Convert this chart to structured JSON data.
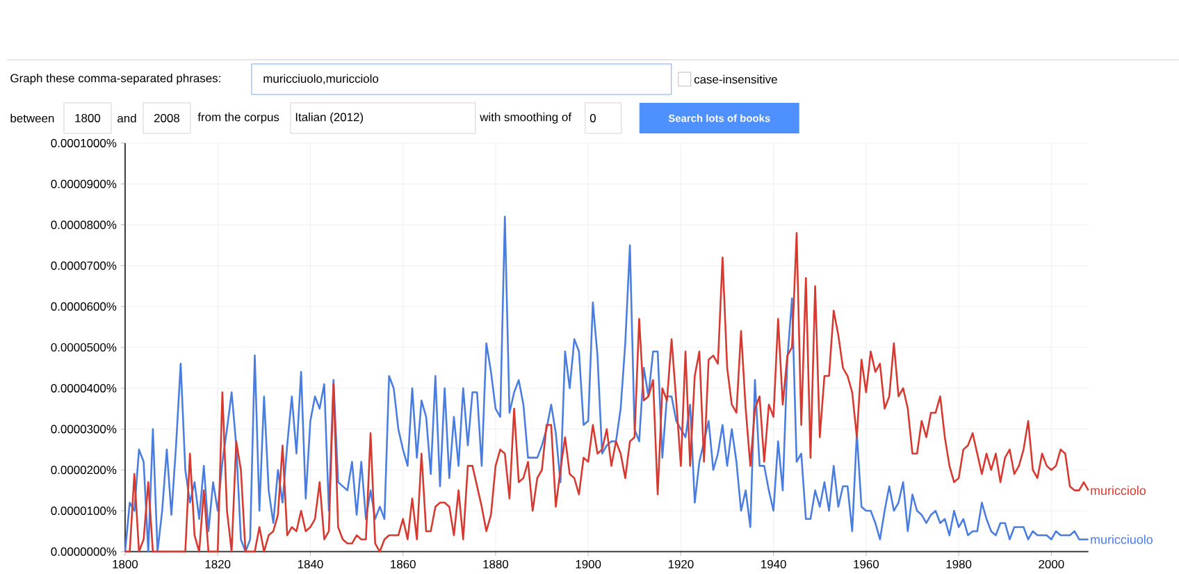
{
  "chart_data": {
    "type": "line",
    "annotations": [
      "Graph these comma-separated phrases:",
      "muricciuolo,muricciolo",
      "case-insensitive",
      "between",
      "1800",
      "and",
      "2008",
      "from the corpus",
      "Italian (2012)",
      "with smoothing of",
      "0",
      "Search lots of books"
    ],
    "x": [
      1800,
      1801,
      1802,
      1803,
      1804,
      1805,
      1806,
      1807,
      1808,
      1809,
      1810,
      1811,
      1812,
      1813,
      1814,
      1815,
      1816,
      1817,
      1818,
      1819,
      1820,
      1821,
      1822,
      1823,
      1824,
      1825,
      1826,
      1827,
      1828,
      1829,
      1830,
      1831,
      1832,
      1833,
      1834,
      1835,
      1836,
      1837,
      1838,
      1839,
      1840,
      1841,
      1842,
      1843,
      1844,
      1845,
      1846,
      1847,
      1848,
      1849,
      1850,
      1851,
      1852,
      1853,
      1854,
      1855,
      1856,
      1857,
      1858,
      1859,
      1860,
      1861,
      1862,
      1863,
      1864,
      1865,
      1866,
      1867,
      1868,
      1869,
      1870,
      1871,
      1872,
      1873,
      1874,
      1875,
      1876,
      1877,
      1878,
      1879,
      1880,
      1881,
      1882,
      1883,
      1884,
      1885,
      1886,
      1887,
      1888,
      1889,
      1890,
      1891,
      1892,
      1893,
      1894,
      1895,
      1896,
      1897,
      1898,
      1899,
      1900,
      1901,
      1902,
      1903,
      1904,
      1905,
      1906,
      1907,
      1908,
      1909,
      1910,
      1911,
      1912,
      1913,
      1914,
      1915,
      1916,
      1917,
      1918,
      1919,
      1920,
      1921,
      1922,
      1923,
      1924,
      1925,
      1926,
      1927,
      1928,
      1929,
      1930,
      1931,
      1932,
      1933,
      1934,
      1935,
      1936,
      1937,
      1938,
      1939,
      1940,
      1941,
      1942,
      1943,
      1944,
      1945,
      1946,
      1947,
      1948,
      1949,
      1950,
      1951,
      1952,
      1953,
      1954,
      1955,
      1956,
      1957,
      1958,
      1959,
      1960,
      1961,
      1962,
      1963,
      1964,
      1965,
      1966,
      1967,
      1968,
      1969,
      1970,
      1971,
      1972,
      1973,
      1974,
      1975,
      1976,
      1977,
      1978,
      1979,
      1980,
      1981,
      1982,
      1983,
      1984,
      1985,
      1986,
      1987,
      1988,
      1989,
      1990,
      1991,
      1992,
      1993,
      1994,
      1995,
      1996,
      1997,
      1998,
      1999,
      2000,
      2001,
      2002,
      2003,
      2004,
      2005,
      2006,
      2007,
      2008
    ],
    "series": [
      {
        "name": "muricciuolo",
        "color": "#4a7de0",
        "values": [
          0,
          1.2e-05,
          1e-05,
          2.5e-05,
          2.2e-05,
          0,
          3e-05,
          0,
          1e-05,
          2.5e-05,
          9e-06,
          2.6e-05,
          4.6e-05,
          2e-05,
          1.2e-05,
          1.7e-05,
          8e-06,
          2.1e-05,
          5e-06,
          1.7e-05,
          1e-05,
          2.2e-05,
          3e-05,
          3.9e-05,
          2.6e-05,
          3e-06,
          0,
          3e-06,
          4.8e-05,
          1e-05,
          3.8e-05,
          1.5e-05,
          7e-06,
          2e-05,
          1.2e-05,
          2.6e-05,
          3.8e-05,
          2.4e-05,
          4.4e-05,
          1.3e-05,
          3.2e-05,
          3.8e-05,
          3.5e-05,
          4.1e-05,
          1e-05,
          4.2e-05,
          1.7e-05,
          1.6e-05,
          1.5e-05,
          2.2e-05,
          9e-06,
          2.2e-05,
          8e-06,
          1.5e-05,
          8e-06,
          1.1e-05,
          8e-06,
          4.3e-05,
          4e-05,
          3e-05,
          2.5e-05,
          2.1e-05,
          4e-05,
          2.3e-05,
          3.7e-05,
          3.3e-05,
          1.9e-05,
          4.3e-05,
          1.6e-05,
          4e-05,
          1.8e-05,
          3.3e-05,
          2.1e-05,
          4e-05,
          2.6e-05,
          3.9e-05,
          3.9e-05,
          2.1e-05,
          5.1e-05,
          4.4e-05,
          3.5e-05,
          3.3e-05,
          8.2e-05,
          3.4e-05,
          3.9e-05,
          4.2e-05,
          3.6e-05,
          2.3e-05,
          2.3e-05,
          2.3e-05,
          2.6e-05,
          3e-05,
          3.6e-05,
          2.9e-05,
          1.7e-05,
          4.9e-05,
          4e-05,
          5.2e-05,
          4.9e-05,
          3.1e-05,
          3.2e-05,
          6.1e-05,
          4.8e-05,
          2.4e-05,
          2.6e-05,
          2.7e-05,
          2.7e-05,
          3.5e-05,
          5.1e-05,
          7.5e-05,
          3e-05,
          2.7e-05,
          4.5e-05,
          3.8e-05,
          4.9e-05,
          4.9e-05,
          2.3e-05,
          3.8e-05,
          3.8e-05,
          3.2e-05,
          3e-05,
          2.8e-05,
          3.6e-05,
          1.2e-05,
          2.2e-05,
          2.7e-05,
          3.2e-05,
          2e-05,
          2.4e-05,
          3.1e-05,
          2.1e-05,
          3e-05,
          2.2e-05,
          1e-05,
          1.5e-05,
          6e-06,
          4.2e-05,
          2.1e-05,
          2.1e-05,
          1.5e-05,
          1e-05,
          2.7e-05,
          1.5e-05,
          4.7e-05,
          6.2e-05,
          2.2e-05,
          2.4e-05,
          8e-06,
          8e-06,
          1.5e-05,
          1.1e-05,
          1.7e-05,
          1e-05,
          2.1e-05,
          1.1e-05,
          1.6e-05,
          1.6e-05,
          5e-06,
          2.9e-05,
          1.1e-05,
          1e-05,
          1e-05,
          7e-06,
          3e-06,
          1e-05,
          1.6e-05,
          1e-05,
          1.2e-05,
          1.7e-05,
          5e-06,
          1.4e-05,
          1e-05,
          9e-06,
          7e-06,
          9e-06,
          1e-05,
          7e-06,
          8e-06,
          4e-06,
          1e-05,
          6e-06,
          8e-06,
          4e-06,
          5e-06,
          5e-06,
          1.2e-05,
          8e-06,
          5e-06,
          4e-06,
          7e-06,
          7e-06,
          3e-06,
          6e-06,
          6e-06,
          6e-06,
          3e-06,
          5e-06,
          4e-06,
          4e-06,
          4e-06,
          3e-06,
          5e-06,
          4e-06,
          4e-06,
          4e-06,
          5e-06,
          3e-06,
          3e-06,
          3e-06
        ]
      },
      {
        "name": "muricciolo",
        "color": "#d6392f",
        "values": [
          0,
          0,
          1.9e-05,
          0,
          3e-06,
          1.7e-05,
          0,
          0,
          0,
          0,
          0,
          0,
          0,
          0,
          2.4e-05,
          4e-06,
          0,
          1.5e-05,
          0,
          0,
          0,
          3.9e-05,
          1e-05,
          0,
          2.7e-05,
          2e-05,
          0,
          0,
          0,
          6e-06,
          0,
          4e-06,
          5e-06,
          9e-06,
          2.6e-05,
          4e-06,
          6e-06,
          5e-06,
          1e-05,
          5e-06,
          6e-06,
          8e-06,
          1.7e-05,
          3e-06,
          5e-06,
          4.1e-05,
          6e-06,
          3e-06,
          2e-06,
          2e-06,
          4e-06,
          3e-06,
          3e-06,
          2.9e-05,
          2e-06,
          0,
          3e-06,
          4e-06,
          4e-06,
          4e-06,
          8e-06,
          3e-06,
          1.3e-05,
          3e-06,
          2.4e-05,
          5e-06,
          5e-06,
          1.1e-05,
          1.2e-05,
          1.2e-05,
          1.1e-05,
          4e-06,
          1.5e-05,
          3e-06,
          2.1e-05,
          2.1e-05,
          1.6e-05,
          1.1e-05,
          5e-06,
          9e-06,
          2.1e-05,
          2.5e-05,
          2.4e-05,
          1.3e-05,
          3.5e-05,
          1.7e-05,
          1.8e-05,
          2.2e-05,
          1e-05,
          1.8e-05,
          2e-05,
          3.1e-05,
          3.1e-05,
          1.1e-05,
          2e-05,
          2.8e-05,
          1.9e-05,
          1.8e-05,
          1.4e-05,
          2.3e-05,
          2.2e-05,
          3.1e-05,
          2.4e-05,
          2.5e-05,
          3e-05,
          2.1e-05,
          2.7e-05,
          2.4e-05,
          1.8e-05,
          2.7e-05,
          2.8e-05,
          5.7e-05,
          3.7e-05,
          3.8e-05,
          4.2e-05,
          1.4e-05,
          4e-05,
          3.7e-05,
          5.2e-05,
          3.7e-05,
          2.1e-05,
          4.9e-05,
          2.1e-05,
          4.3e-05,
          4.9e-05,
          2.2e-05,
          4.7e-05,
          4.8e-05,
          4.6e-05,
          7.2e-05,
          4.5e-05,
          3.6e-05,
          3.4e-05,
          5.4e-05,
          3.5e-05,
          2.1e-05,
          3.5e-05,
          3.8e-05,
          2.2e-05,
          3.6e-05,
          3.3e-05,
          5.7e-05,
          3.6e-05,
          4.8e-05,
          5e-05,
          7.8e-05,
          3.1e-05,
          6.7e-05,
          2.3e-05,
          6.5e-05,
          2.8e-05,
          4.3e-05,
          4.3e-05,
          5.9e-05,
          5.3e-05,
          4.5e-05,
          4.3e-05,
          3.9e-05,
          2.8e-05,
          4.7e-05,
          3.9e-05,
          4.9e-05,
          4.4e-05,
          4.6e-05,
          3.5e-05,
          3.8e-05,
          5.1e-05,
          3.8e-05,
          4e-05,
          3.5e-05,
          2.4e-05,
          2.4e-05,
          3.2e-05,
          2.8e-05,
          3.4e-05,
          3.4e-05,
          3.8e-05,
          2.8e-05,
          2.1e-05,
          1.7e-05,
          1.8e-05,
          2.5e-05,
          2.6e-05,
          2.9e-05,
          2.4e-05,
          1.9e-05,
          2.4e-05,
          2e-05,
          2.4e-05,
          1.7e-05,
          2.3e-05,
          2.5e-05,
          1.9e-05,
          2.1e-05,
          2.5e-05,
          3.2e-05,
          2e-05,
          1.8e-05,
          2.4e-05,
          2.1e-05,
          2e-05,
          2.1e-05,
          2.5e-05,
          2.4e-05,
          1.6e-05,
          1.5e-05,
          1.5e-05,
          1.7e-05,
          1.5e-05
        ]
      }
    ],
    "xlim": [
      1800,
      2008
    ],
    "ylim": [
      0,
      0.0001
    ],
    "xticks": [
      1800,
      1820,
      1840,
      1860,
      1880,
      1900,
      1920,
      1940,
      1960,
      1980,
      2000
    ],
    "yticks": [
      {
        "value": 0,
        "label": "0.0000000%"
      },
      {
        "value": 1e-05,
        "label": "0.0000100%"
      },
      {
        "value": 2e-05,
        "label": "0.0000200%"
      },
      {
        "value": 3e-05,
        "label": "0.0000300%"
      },
      {
        "value": 4e-05,
        "label": "0.0000400%"
      },
      {
        "value": 5e-05,
        "label": "0.0000500%"
      },
      {
        "value": 6e-05,
        "label": "0.0000600%"
      },
      {
        "value": 7e-05,
        "label": "0.0000700%"
      },
      {
        "value": 8e-05,
        "label": "0.0000800%"
      },
      {
        "value": 9e-05,
        "label": "0.0000900%"
      },
      {
        "value": 0.0001,
        "label": "0.0001000%"
      }
    ],
    "grid": true
  }
}
